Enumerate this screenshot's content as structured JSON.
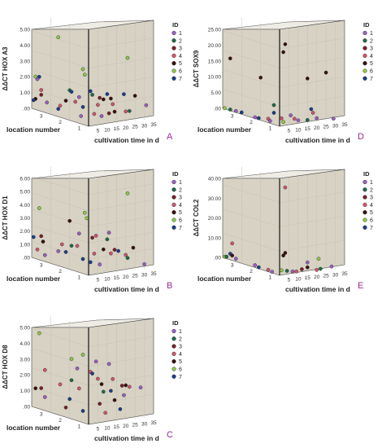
{
  "legend": {
    "title": "ID",
    "items": [
      {
        "label": "1",
        "color": "#9b5fc4"
      },
      {
        "label": "2",
        "color": "#1d6b4a"
      },
      {
        "label": "3",
        "color": "#7a1f2a"
      },
      {
        "label": "4",
        "color": "#d0566e"
      },
      {
        "label": "5",
        "color": "#3a1010"
      },
      {
        "label": "6",
        "color": "#8cc84a"
      },
      {
        "label": "7",
        "color": "#1e3c8a"
      }
    ]
  },
  "chart_data": [
    {
      "type": "scatter",
      "panel_letter": "A",
      "ylabel": "ΔΔCT HOX A3",
      "ylim": [
        0,
        5
      ],
      "yticks": [
        "5.00",
        "4.00",
        "3.00",
        "2.00",
        "1.00",
        ".00"
      ],
      "left_axis": {
        "label": "location number",
        "ticks": [
          "3",
          "2",
          "1"
        ]
      },
      "right_axis": {
        "label": "cultivation time in d",
        "ticks": [
          "5",
          "10",
          "15",
          "20",
          "25",
          "30",
          "35"
        ]
      },
      "points": [
        {
          "id": 6,
          "loc": 1.6,
          "days": 0,
          "y": 4.1
        },
        {
          "id": 6,
          "loc": 0.3,
          "days": 0,
          "y": 2.85
        },
        {
          "id": 6,
          "loc": 0.2,
          "days": 0,
          "y": 2.6
        },
        {
          "id": 6,
          "loc": 2.8,
          "days": 0,
          "y": 1.7
        },
        {
          "id": 7,
          "loc": 2.6,
          "days": 0,
          "y": 1.75
        },
        {
          "id": 1,
          "loc": 2.7,
          "days": 0,
          "y": 1.6
        },
        {
          "id": 4,
          "loc": 2.5,
          "days": 0,
          "y": 1.1
        },
        {
          "id": 3,
          "loc": 2.5,
          "days": 0,
          "y": 0.85
        },
        {
          "id": 5,
          "loc": 2.8,
          "days": 0,
          "y": 0.55
        },
        {
          "id": 7,
          "loc": 2.9,
          "days": 0,
          "y": 0.45
        },
        {
          "id": 1,
          "loc": 2.2,
          "days": 0,
          "y": 0.55
        },
        {
          "id": 7,
          "loc": 1.6,
          "days": 0,
          "y": 0.4
        },
        {
          "id": 4,
          "loc": 1.5,
          "days": 0,
          "y": 0.6
        },
        {
          "id": 5,
          "loc": 1.2,
          "days": 0,
          "y": 0.95
        },
        {
          "id": 2,
          "loc": 1.0,
          "days": 0,
          "y": 1.55
        },
        {
          "id": 7,
          "loc": 0.9,
          "days": 0,
          "y": 1.5
        },
        {
          "id": 4,
          "loc": 0.7,
          "days": 0,
          "y": 1.05
        },
        {
          "id": 1,
          "loc": 0.5,
          "days": 0,
          "y": 1.35
        },
        {
          "id": 7,
          "loc": 0.3,
          "days": 0,
          "y": 0.9
        },
        {
          "id": 1,
          "loc": 0.4,
          "days": 0,
          "y": 0.4
        },
        {
          "id": 7,
          "loc": 0,
          "days": 1,
          "y": 1.8
        },
        {
          "id": 2,
          "loc": 0,
          "days": 2,
          "y": 1.6
        },
        {
          "id": 4,
          "loc": 0,
          "days": 5,
          "y": 1.05
        },
        {
          "id": 3,
          "loc": 0,
          "days": 6,
          "y": 1.4
        },
        {
          "id": 5,
          "loc": 0,
          "days": 8,
          "y": 1.3
        },
        {
          "id": 4,
          "loc": 0,
          "days": 3,
          "y": 0.6
        },
        {
          "id": 1,
          "loc": 0,
          "days": 7,
          "y": 0.45
        },
        {
          "id": 7,
          "loc": 0,
          "days": 10,
          "y": 1.55
        },
        {
          "id": 5,
          "loc": 0,
          "days": 12,
          "y": 1.3
        },
        {
          "id": 4,
          "loc": 0,
          "days": 13,
          "y": 1.0
        },
        {
          "id": 3,
          "loc": 0,
          "days": 11,
          "y": 0.55
        },
        {
          "id": 5,
          "loc": 0,
          "days": 14,
          "y": 0.6
        },
        {
          "id": 7,
          "loc": 0,
          "days": 19,
          "y": 1.45
        },
        {
          "id": 6,
          "loc": 0,
          "days": 21,
          "y": 3.3
        },
        {
          "id": 4,
          "loc": 0,
          "days": 20,
          "y": 0.55
        },
        {
          "id": 2,
          "loc": 0,
          "days": 22,
          "y": 0.55
        },
        {
          "id": 5,
          "loc": 0,
          "days": 25,
          "y": 1.3
        },
        {
          "id": 1,
          "loc": 0,
          "days": 31,
          "y": 0.75
        }
      ]
    },
    {
      "type": "scatter",
      "panel_letter": "D",
      "ylabel": "ΔΔCT SOX9",
      "ylim": [
        0,
        25
      ],
      "yticks": [
        "25.00",
        "20.00",
        "15.00",
        "10.00",
        "5.00",
        ".00"
      ],
      "left_axis": {
        "label": "location number",
        "ticks": [
          "3",
          "2",
          "1"
        ]
      },
      "right_axis": {
        "label": "cultivation time in d",
        "ticks": [
          "5",
          "10",
          "15",
          "20",
          "25",
          "30",
          "35"
        ]
      },
      "points": [
        {
          "id": 5,
          "loc": 2.6,
          "days": 0,
          "y": 13.5
        },
        {
          "id": 5,
          "loc": 1.0,
          "days": 0,
          "y": 11.0
        },
        {
          "id": 2,
          "loc": 0.3,
          "days": 0,
          "y": 5.0
        },
        {
          "id": 7,
          "loc": 0.3,
          "days": 0,
          "y": 3.0
        },
        {
          "id": 6,
          "loc": 2.9,
          "days": 0,
          "y": 0.2
        },
        {
          "id": 2,
          "loc": 2.6,
          "days": 0,
          "y": 0.3
        },
        {
          "id": 1,
          "loc": 2.3,
          "days": 0,
          "y": 0.4
        },
        {
          "id": 7,
          "loc": 2.0,
          "days": 0,
          "y": 0.5
        },
        {
          "id": 1,
          "loc": 1.3,
          "days": 0,
          "y": 0.3
        },
        {
          "id": 7,
          "loc": 1.1,
          "days": 0,
          "y": 0.4
        },
        {
          "id": 4,
          "loc": 0.6,
          "days": 0,
          "y": 1.0
        },
        {
          "id": 1,
          "loc": 0.5,
          "days": 0,
          "y": 0.6
        },
        {
          "id": 5,
          "loc": 0,
          "days": 3,
          "y": 21.0
        },
        {
          "id": 5,
          "loc": 0,
          "days": 2,
          "y": 19.0
        },
        {
          "id": 4,
          "loc": 0,
          "days": 1,
          "y": 2.0
        },
        {
          "id": 6,
          "loc": 0,
          "days": 2,
          "y": 1.0
        },
        {
          "id": 1,
          "loc": 0,
          "days": 6,
          "y": 2.5
        },
        {
          "id": 4,
          "loc": 0,
          "days": 8,
          "y": 1.5
        },
        {
          "id": 1,
          "loc": 0,
          "days": 10,
          "y": 1.0
        },
        {
          "id": 5,
          "loc": 0,
          "days": 15,
          "y": 11.5
        },
        {
          "id": 5,
          "loc": 0,
          "days": 25,
          "y": 12.5
        },
        {
          "id": 7,
          "loc": 0,
          "days": 17,
          "y": 3.5
        },
        {
          "id": 4,
          "loc": 0,
          "days": 18,
          "y": 2.5
        },
        {
          "id": 1,
          "loc": 0,
          "days": 20,
          "y": 1.0
        },
        {
          "id": 2,
          "loc": 0,
          "days": 15,
          "y": 0.8
        },
        {
          "id": 1,
          "loc": 0,
          "days": 29,
          "y": 0.4
        }
      ]
    },
    {
      "type": "scatter",
      "panel_letter": "B",
      "ylabel": "ΔΔCT HOX D1",
      "ylim": [
        0,
        6
      ],
      "yticks": [
        "6.00",
        "5.00",
        "4.00",
        "3.00",
        "2.00",
        "1.00",
        ".00"
      ],
      "left_axis": {
        "label": "location number",
        "ticks": [
          "3",
          "2",
          "1"
        ]
      },
      "right_axis": {
        "label": "cultivation time in d",
        "ticks": [
          "5",
          "10",
          "15",
          "20",
          "25",
          "30",
          "35"
        ]
      },
      "points": [
        {
          "id": 6,
          "loc": 2.6,
          "days": 0,
          "y": 3.2
        },
        {
          "id": 6,
          "loc": 0.2,
          "days": 0,
          "y": 3.8
        },
        {
          "id": 6,
          "loc": 0.1,
          "days": 0,
          "y": 3.5
        },
        {
          "id": 5,
          "loc": 1.0,
          "days": 0,
          "y": 3.0
        },
        {
          "id": 7,
          "loc": 2.9,
          "days": 0,
          "y": 1.3
        },
        {
          "id": 3,
          "loc": 2.5,
          "days": 0,
          "y": 1.5
        },
        {
          "id": 5,
          "loc": 2.4,
          "days": 0,
          "y": 1.2
        },
        {
          "id": 4,
          "loc": 2.7,
          "days": 0,
          "y": 0.6
        },
        {
          "id": 1,
          "loc": 2.3,
          "days": 0,
          "y": 0.4
        },
        {
          "id": 1,
          "loc": 1.6,
          "days": 0,
          "y": 0.9
        },
        {
          "id": 4,
          "loc": 1.4,
          "days": 0,
          "y": 1.4
        },
        {
          "id": 7,
          "loc": 1.2,
          "days": 0,
          "y": 1.0
        },
        {
          "id": 2,
          "loc": 0.9,
          "days": 0,
          "y": 1.5
        },
        {
          "id": 4,
          "loc": 0.6,
          "days": 0,
          "y": 1.6
        },
        {
          "id": 1,
          "loc": 0.5,
          "days": 0,
          "y": 2.4
        },
        {
          "id": 7,
          "loc": 0.3,
          "days": 0,
          "y": 0.9
        },
        {
          "id": 3,
          "loc": 0,
          "days": 2,
          "y": 2.3
        },
        {
          "id": 4,
          "loc": 0,
          "days": 4,
          "y": 2.4
        },
        {
          "id": 4,
          "loc": 0,
          "days": 3,
          "y": 1.3
        },
        {
          "id": 7,
          "loc": 0,
          "days": 1,
          "y": 0.8
        },
        {
          "id": 1,
          "loc": 0,
          "days": 6,
          "y": 0.6
        },
        {
          "id": 5,
          "loc": 0,
          "days": 8,
          "y": 1.5
        },
        {
          "id": 2,
          "loc": 0,
          "days": 10,
          "y": 2.1
        },
        {
          "id": 1,
          "loc": 0,
          "days": 11,
          "y": 2.5
        },
        {
          "id": 4,
          "loc": 0,
          "days": 12,
          "y": 1.2
        },
        {
          "id": 3,
          "loc": 0,
          "days": 14,
          "y": 1.4
        },
        {
          "id": 7,
          "loc": 0,
          "days": 16,
          "y": 1.3
        },
        {
          "id": 6,
          "loc": 0,
          "days": 21,
          "y": 4.8
        },
        {
          "id": 4,
          "loc": 0,
          "days": 20,
          "y": 1.0
        },
        {
          "id": 2,
          "loc": 0,
          "days": 21,
          "y": 0.8
        },
        {
          "id": 5,
          "loc": 0,
          "days": 24,
          "y": 1.4
        },
        {
          "id": 1,
          "loc": 0,
          "days": 30,
          "y": 0.3
        }
      ]
    },
    {
      "type": "scatter",
      "panel_letter": "E",
      "ylabel": "ΔΔCT COL2",
      "ylim": [
        0,
        40
      ],
      "yticks": [
        "40.00",
        "30.00",
        "20.00",
        "10.00",
        ".00"
      ],
      "left_axis": {
        "label": "location number",
        "ticks": [
          "3",
          "2",
          "1"
        ]
      },
      "right_axis": {
        "label": "cultivation time in d",
        "ticks": [
          "5",
          "10",
          "15",
          "20",
          "25",
          "30",
          "35"
        ]
      },
      "points": [
        {
          "id": 4,
          "loc": 2.5,
          "days": 0,
          "y": 7.0
        },
        {
          "id": 7,
          "loc": 2.6,
          "days": 0,
          "y": 2.5
        },
        {
          "id": 5,
          "loc": 2.5,
          "days": 0,
          "y": 2.0
        },
        {
          "id": 6,
          "loc": 2.9,
          "days": 0,
          "y": 0.5
        },
        {
          "id": 2,
          "loc": 2.8,
          "days": 0,
          "y": 0.8
        },
        {
          "id": 1,
          "loc": 2.3,
          "days": 0,
          "y": 1.2
        },
        {
          "id": 1,
          "loc": 1.3,
          "days": 0,
          "y": 1.0
        },
        {
          "id": 7,
          "loc": 1.1,
          "days": 0,
          "y": 0.6
        },
        {
          "id": 4,
          "loc": 0.6,
          "days": 0,
          "y": 0.8
        },
        {
          "id": 1,
          "loc": 0.4,
          "days": 0,
          "y": 0.5
        },
        {
          "id": 4,
          "loc": 0,
          "days": 3,
          "y": 36.0
        },
        {
          "id": 5,
          "loc": 0,
          "days": 3,
          "y": 9.0
        },
        {
          "id": 5,
          "loc": 0,
          "days": 2,
          "y": 8.0
        },
        {
          "id": 6,
          "loc": 0,
          "days": 1,
          "y": 2.0
        },
        {
          "id": 2,
          "loc": 0,
          "days": 4,
          "y": 1.5
        },
        {
          "id": 1,
          "loc": 0,
          "days": 7,
          "y": 1.0
        },
        {
          "id": 4,
          "loc": 0,
          "days": 9,
          "y": 0.8
        },
        {
          "id": 3,
          "loc": 0,
          "days": 12,
          "y": 1.5
        },
        {
          "id": 5,
          "loc": 0,
          "days": 15,
          "y": 2.0
        },
        {
          "id": 1,
          "loc": 0,
          "days": 15,
          "y": 4.0
        },
        {
          "id": 6,
          "loc": 0,
          "days": 21,
          "y": 5.0
        },
        {
          "id": 4,
          "loc": 0,
          "days": 20,
          "y": 0.5
        },
        {
          "id": 2,
          "loc": 0,
          "days": 22,
          "y": 0.8
        },
        {
          "id": 1,
          "loc": 0,
          "days": 28,
          "y": 1.2
        }
      ]
    },
    {
      "type": "scatter",
      "panel_letter": "C",
      "ylabel": "ΔΔCT HOX D8",
      "ylim": [
        0,
        5
      ],
      "yticks": [
        "5.00",
        "4.00",
        "3.00",
        "2.00",
        "1.00",
        ".00"
      ],
      "left_axis": {
        "label": "location number",
        "ticks": [
          "3",
          "2",
          "1"
        ]
      },
      "right_axis": {
        "label": "cultivation time in d",
        "ticks": [
          "5",
          "10",
          "15",
          "20",
          "25",
          "30",
          "35"
        ]
      },
      "points": [
        {
          "id": 6,
          "loc": 2.6,
          "days": 0,
          "y": 3.9
        },
        {
          "id": 6,
          "loc": 0.9,
          "days": 0,
          "y": 3.1
        },
        {
          "id": 6,
          "loc": 0.3,
          "days": 0,
          "y": 3.5
        },
        {
          "id": 4,
          "loc": 2.3,
          "days": 0,
          "y": 2.1
        },
        {
          "id": 3,
          "loc": 2.5,
          "days": 0,
          "y": 1.1
        },
        {
          "id": 5,
          "loc": 2.8,
          "days": 0,
          "y": 1.0
        },
        {
          "id": 1,
          "loc": 2.3,
          "days": 0,
          "y": 0.7
        },
        {
          "id": 4,
          "loc": 1.5,
          "days": 0,
          "y": 1.6
        },
        {
          "id": 3,
          "loc": 1.2,
          "days": 0,
          "y": 0.5
        },
        {
          "id": 2,
          "loc": 0.9,
          "days": 0,
          "y": 2.0
        },
        {
          "id": 7,
          "loc": 1.0,
          "days": 0,
          "y": 1.0
        },
        {
          "id": 1,
          "loc": 0.6,
          "days": 0,
          "y": 2.7
        },
        {
          "id": 4,
          "loc": 0.5,
          "days": 0,
          "y": 1.7
        },
        {
          "id": 7,
          "loc": 0.3,
          "days": 0,
          "y": 0.6
        },
        {
          "id": 4,
          "loc": 0,
          "days": 1,
          "y": 2.7
        },
        {
          "id": 7,
          "loc": 0,
          "days": 2,
          "y": 2.6
        },
        {
          "id": 1,
          "loc": 0,
          "days": 4,
          "y": 3.2
        },
        {
          "id": 4,
          "loc": 0,
          "days": 5,
          "y": 2.3
        },
        {
          "id": 5,
          "loc": 0,
          "days": 7,
          "y": 2.0
        },
        {
          "id": 2,
          "loc": 0,
          "days": 8,
          "y": 1.6
        },
        {
          "id": 3,
          "loc": 0,
          "days": 6,
          "y": 1.0
        },
        {
          "id": 4,
          "loc": 0,
          "days": 9,
          "y": 0.5
        },
        {
          "id": 1,
          "loc": 0,
          "days": 11,
          "y": 3.0
        },
        {
          "id": 4,
          "loc": 0,
          "days": 13,
          "y": 2.2
        },
        {
          "id": 7,
          "loc": 0,
          "days": 12,
          "y": 1.6
        },
        {
          "id": 5,
          "loc": 0,
          "days": 14,
          "y": 1.1
        },
        {
          "id": 3,
          "loc": 0,
          "days": 18,
          "y": 1.8
        },
        {
          "id": 5,
          "loc": 0,
          "days": 20,
          "y": 1.8
        },
        {
          "id": 1,
          "loc": 0,
          "days": 19,
          "y": 1.3
        },
        {
          "id": 7,
          "loc": 0,
          "days": 17,
          "y": 0.6
        },
        {
          "id": 4,
          "loc": 0,
          "days": 22,
          "y": 1.7
        },
        {
          "id": 1,
          "loc": 0,
          "days": 28,
          "y": 1.6
        }
      ]
    }
  ]
}
